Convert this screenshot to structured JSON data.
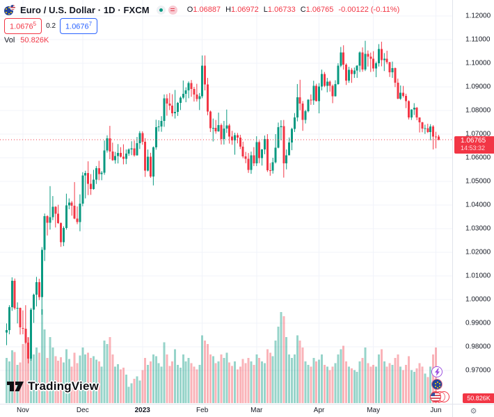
{
  "colors": {
    "up": "#089981",
    "down": "#F23645",
    "accent_blue": "#2962FF",
    "text": "#131722",
    "muted_text": "#787B86",
    "grid": "#F0F3FA",
    "axis_border": "#E0E3EB",
    "last_price_line": "#F23645",
    "volume_up": "rgba(8,153,129,0.42)",
    "volume_down": "rgba(242,54,69,0.38)"
  },
  "header": {
    "title": "Euro / U.S. Dollar · 1D · FXCM",
    "ohlc": {
      "o_label": "O",
      "o_value": "1.06887",
      "h_label": "H",
      "h_value": "1.06972",
      "l_label": "L",
      "l_value": "1.06733",
      "c_label": "C",
      "c_value": "1.06765",
      "change": "-0.00122 (-0.11%)"
    },
    "sell_price": {
      "main": "1.0676",
      "sup": "5"
    },
    "spread": "0.2",
    "buy_price": {
      "main": "1.0676",
      "sup": "7"
    },
    "volume_row": {
      "label": "Vol",
      "value": "50.826K"
    }
  },
  "price_scale": {
    "ticks": [
      {
        "value": 1.12,
        "label": "1.12000"
      },
      {
        "value": 1.11,
        "label": "1.11000"
      },
      {
        "value": 1.1,
        "label": "1.10000"
      },
      {
        "value": 1.09,
        "label": "1.09000"
      },
      {
        "value": 1.08,
        "label": "1.08000"
      },
      {
        "value": 1.07,
        "label": "1.07000"
      },
      {
        "value": 1.06,
        "label": "1.06000"
      },
      {
        "value": 1.05,
        "label": "1.05000"
      },
      {
        "value": 1.04,
        "label": "1.04000"
      },
      {
        "value": 1.03,
        "label": "1.03000"
      },
      {
        "value": 1.02,
        "label": "1.02000"
      },
      {
        "value": 1.01,
        "label": "1.01000"
      },
      {
        "value": 1.0,
        "label": "1.00000"
      },
      {
        "value": 0.99,
        "label": "0.99000"
      },
      {
        "value": 0.98,
        "label": "0.98000"
      },
      {
        "value": 0.97,
        "label": "0.97000"
      }
    ],
    "last": {
      "value": 1.06765,
      "label": "1.06765",
      "countdown": "14:53:32"
    },
    "volume_badge": "50.826K"
  },
  "time_scale": {
    "ticks": [
      {
        "label": "Nov",
        "index": 6
      },
      {
        "label": "Dec",
        "index": 28
      },
      {
        "label": "2023",
        "index": 50,
        "bold": true
      },
      {
        "label": "Feb",
        "index": 72
      },
      {
        "label": "Mar",
        "index": 92
      },
      {
        "label": "Apr",
        "index": 115
      },
      {
        "label": "May",
        "index": 135
      },
      {
        "label": "Jun",
        "index": 158
      }
    ]
  },
  "watermark": {
    "brand": "TradingView"
  },
  "corner": {
    "gear": "⚙"
  },
  "chart_data": {
    "type": "candlestick",
    "title": "Euro / U.S. Dollar",
    "interval": "1D",
    "exchange": "FXCM",
    "legend_position": "top-left",
    "grid": true,
    "y_axis": {
      "min": 0.97,
      "max": 1.12,
      "tick_step": 0.01
    },
    "x_axis": {
      "labels": [
        "Nov",
        "Dec",
        "2023",
        "Feb",
        "Mar",
        "Apr",
        "May",
        "Jun"
      ]
    },
    "last_close": 1.06765,
    "last_volume_k": 50.826,
    "series_format": [
      "open",
      "high",
      "low",
      "close",
      "volume_k"
    ],
    "candles": [
      [
        0.986,
        0.9899,
        0.9807,
        0.9871,
        520
      ],
      [
        0.9871,
        0.9976,
        0.9853,
        0.9967,
        480
      ],
      [
        0.9967,
        1.0094,
        0.9952,
        1.008,
        610
      ],
      [
        1.008,
        1.0089,
        0.9957,
        0.9963,
        590
      ],
      [
        0.9963,
        0.9988,
        0.9899,
        0.9965,
        440
      ],
      [
        0.9965,
        0.9966,
        0.9852,
        0.9882,
        470
      ],
      [
        0.988,
        0.9954,
        0.9853,
        0.9877,
        680
      ],
      [
        0.9876,
        0.9976,
        0.9813,
        0.9817,
        820
      ],
      [
        0.9817,
        0.984,
        0.973,
        0.975,
        760
      ],
      [
        0.975,
        0.9965,
        0.9741,
        0.9957,
        900
      ],
      [
        0.9957,
        1.0025,
        0.9901,
        1.002,
        560
      ],
      [
        1.002,
        1.0096,
        0.9971,
        1.0074,
        640
      ],
      [
        1.0074,
        1.0088,
        0.9998,
        1.0011,
        580
      ],
      [
        1.0011,
        1.0222,
        0.9936,
        1.021,
        1080
      ],
      [
        1.021,
        1.0364,
        1.0163,
        1.0353,
        850
      ],
      [
        1.0353,
        1.0357,
        1.0271,
        1.0325,
        520
      ],
      [
        1.0325,
        1.048,
        1.0296,
        1.0348,
        760
      ],
      [
        1.0348,
        1.0438,
        1.0336,
        1.0393,
        640
      ],
      [
        1.0393,
        1.0395,
        1.0305,
        1.0363,
        540
      ],
      [
        1.0363,
        1.0401,
        1.032,
        1.0324,
        490
      ],
      [
        1.0324,
        1.0327,
        1.0223,
        1.0243,
        530
      ],
      [
        1.0243,
        1.031,
        1.0226,
        1.0303,
        470
      ],
      [
        1.0303,
        1.0448,
        1.0296,
        1.0398,
        620
      ],
      [
        1.0398,
        1.0428,
        1.0382,
        1.041,
        510
      ],
      [
        1.041,
        1.0417,
        1.0355,
        1.0397,
        420
      ],
      [
        1.0397,
        1.0497,
        1.034,
        1.0343,
        580
      ],
      [
        1.0343,
        1.0394,
        1.0319,
        1.0328,
        460
      ],
      [
        1.0328,
        1.0445,
        1.0289,
        1.0406,
        550
      ],
      [
        1.0406,
        1.0539,
        1.0395,
        1.0525,
        640
      ],
      [
        1.0525,
        1.0545,
        1.0428,
        1.0535,
        560
      ],
      [
        1.0535,
        1.0585,
        1.0442,
        1.049,
        580
      ],
      [
        1.049,
        1.0531,
        1.0443,
        1.0468,
        520
      ],
      [
        1.0468,
        1.0549,
        1.0465,
        1.0507,
        540
      ],
      [
        1.0507,
        1.0565,
        1.0489,
        1.0556,
        500
      ],
      [
        1.0556,
        1.0587,
        1.0505,
        1.0531,
        480
      ],
      [
        1.0531,
        1.0544,
        1.0505,
        1.0537,
        420
      ],
      [
        1.0537,
        1.0673,
        1.0528,
        1.0631,
        720
      ],
      [
        1.0631,
        1.0695,
        1.0622,
        1.0683,
        680
      ],
      [
        1.0683,
        1.0735,
        1.0594,
        1.0627,
        760
      ],
      [
        1.0627,
        1.0664,
        1.0587,
        1.059,
        560
      ],
      [
        1.059,
        1.0625,
        1.0575,
        1.0607,
        420
      ],
      [
        1.0607,
        1.0658,
        1.0576,
        1.0621,
        450
      ],
      [
        1.0621,
        1.0645,
        1.0601,
        1.0604,
        390
      ],
      [
        1.0604,
        1.0657,
        1.0572,
        1.0595,
        410
      ],
      [
        1.0595,
        1.0635,
        1.0573,
        1.0618,
        330
      ],
      [
        1.0618,
        1.064,
        1.0608,
        1.0635,
        190
      ],
      [
        1.0635,
        1.067,
        1.0611,
        1.064,
        230
      ],
      [
        1.064,
        1.0673,
        1.0605,
        1.061,
        280
      ],
      [
        1.061,
        1.0688,
        1.0609,
        1.0662,
        310
      ],
      [
        1.0662,
        1.0713,
        1.0637,
        1.0705,
        260
      ],
      [
        1.0705,
        1.0712,
        1.0655,
        1.0668,
        380
      ],
      [
        1.0668,
        1.0683,
        1.0519,
        1.0545,
        520
      ],
      [
        1.0545,
        1.0635,
        1.0542,
        1.0605,
        440
      ],
      [
        1.0605,
        1.0621,
        1.0515,
        1.0521,
        480
      ],
      [
        1.0521,
        1.0648,
        1.0483,
        1.0644,
        560
      ],
      [
        1.0644,
        1.0761,
        1.0634,
        1.073,
        540
      ],
      [
        1.073,
        1.0759,
        1.0711,
        1.0732,
        460
      ],
      [
        1.0732,
        1.0776,
        1.071,
        1.0756,
        420
      ],
      [
        1.0756,
        1.0868,
        1.0731,
        1.0852,
        700
      ],
      [
        1.0852,
        1.0869,
        1.0778,
        1.083,
        560
      ],
      [
        1.083,
        1.0874,
        1.0802,
        1.0821,
        430
      ],
      [
        1.0821,
        1.0869,
        1.0775,
        1.0788,
        480
      ],
      [
        1.0788,
        1.0887,
        1.0766,
        1.0794,
        620
      ],
      [
        1.0794,
        1.0836,
        1.0777,
        1.0832,
        440
      ],
      [
        1.0832,
        1.086,
        1.0802,
        1.0855,
        410
      ],
      [
        1.0855,
        1.0927,
        1.0848,
        1.087,
        560
      ],
      [
        1.087,
        1.0898,
        1.0835,
        1.0886,
        480
      ],
      [
        1.0886,
        1.0923,
        1.0852,
        1.0916,
        520
      ],
      [
        1.0916,
        1.0929,
        1.0858,
        1.0891,
        460
      ],
      [
        1.0891,
        1.09,
        1.0838,
        1.0867,
        420
      ],
      [
        1.0867,
        1.0913,
        1.0838,
        1.0849,
        390
      ],
      [
        1.0849,
        1.0874,
        1.0802,
        1.0861,
        440
      ],
      [
        1.0861,
        1.1033,
        1.0852,
        1.0989,
        780
      ],
      [
        1.0989,
        1.1033,
        1.0885,
        1.091,
        720
      ],
      [
        1.091,
        1.0938,
        1.078,
        1.0795,
        680
      ],
      [
        1.0795,
        1.08,
        1.0709,
        1.0725,
        560
      ],
      [
        1.0725,
        1.0766,
        1.0669,
        1.0727,
        540
      ],
      [
        1.0727,
        1.076,
        1.0702,
        1.0712,
        460
      ],
      [
        1.0712,
        1.0791,
        1.071,
        1.0738,
        480
      ],
      [
        1.0738,
        1.0745,
        1.0656,
        1.0679,
        560
      ],
      [
        1.0679,
        1.0756,
        1.0656,
        1.0723,
        520
      ],
      [
        1.0723,
        1.0804,
        1.0705,
        1.0737,
        580
      ],
      [
        1.0737,
        1.0744,
        1.066,
        1.069,
        470
      ],
      [
        1.069,
        1.0714,
        1.0655,
        1.0673,
        430
      ],
      [
        1.0673,
        1.0706,
        1.0613,
        1.0695,
        480
      ],
      [
        1.0695,
        1.0705,
        1.0661,
        1.0686,
        390
      ],
      [
        1.0686,
        1.0697,
        1.0637,
        1.0647,
        420
      ],
      [
        1.0647,
        1.0668,
        1.0598,
        1.0606,
        510
      ],
      [
        1.0606,
        1.0625,
        1.0577,
        1.0595,
        460
      ],
      [
        1.0595,
        1.062,
        1.0536,
        1.0548,
        520
      ],
      [
        1.0548,
        1.0626,
        1.0532,
        1.061,
        480
      ],
      [
        1.061,
        1.0645,
        1.0565,
        1.0576,
        440
      ],
      [
        1.0576,
        1.0691,
        1.0565,
        1.0666,
        560
      ],
      [
        1.0666,
        1.0673,
        1.0577,
        1.0598,
        520
      ],
      [
        1.0598,
        1.0637,
        1.0567,
        1.0635,
        480
      ],
      [
        1.0635,
        1.0694,
        1.0615,
        1.068,
        460
      ],
      [
        1.068,
        1.07,
        1.054,
        1.0547,
        620
      ],
      [
        1.0547,
        1.0578,
        1.0524,
        1.0545,
        580
      ],
      [
        1.0545,
        1.06,
        1.0533,
        1.0581,
        540
      ],
      [
        1.0581,
        1.07,
        1.0576,
        1.0643,
        720
      ],
      [
        1.0643,
        1.0749,
        1.064,
        1.073,
        880
      ],
      [
        1.073,
        1.0759,
        1.0674,
        1.0734,
        1050
      ],
      [
        1.0734,
        1.076,
        1.0516,
        1.0577,
        1000
      ],
      [
        1.0577,
        1.0635,
        1.0551,
        1.0611,
        760
      ],
      [
        1.0611,
        1.0686,
        1.0611,
        1.0665,
        560
      ],
      [
        1.0665,
        1.0727,
        1.0632,
        1.0722,
        520
      ],
      [
        1.0722,
        1.0789,
        1.0709,
        1.077,
        560
      ],
      [
        1.077,
        1.0912,
        1.0754,
        1.0856,
        780
      ],
      [
        1.0856,
        1.093,
        1.0801,
        1.083,
        720
      ],
      [
        1.083,
        1.084,
        1.0714,
        1.076,
        640
      ],
      [
        1.076,
        1.0803,
        1.0745,
        1.0797,
        480
      ],
      [
        1.0797,
        1.0848,
        1.0792,
        1.0845,
        440
      ],
      [
        1.0845,
        1.0868,
        1.0824,
        1.0843,
        420
      ],
      [
        1.0843,
        1.0926,
        1.0824,
        1.0905,
        520
      ],
      [
        1.0905,
        1.0913,
        1.0838,
        1.0839,
        480
      ],
      [
        1.0839,
        1.0916,
        1.0788,
        1.0902,
        500
      ],
      [
        1.0902,
        1.0973,
        1.0885,
        1.0955,
        560
      ],
      [
        1.0955,
        1.0963,
        1.0899,
        1.0905,
        440
      ],
      [
        1.0905,
        1.0938,
        1.0877,
        1.0922,
        420
      ],
      [
        1.0922,
        1.0927,
        1.088,
        1.0904,
        380
      ],
      [
        1.0904,
        1.091,
        1.0831,
        1.0861,
        420
      ],
      [
        1.0861,
        1.0928,
        1.0859,
        1.0912,
        460
      ],
      [
        1.0912,
        1.1,
        1.0909,
        1.0989,
        560
      ],
      [
        1.0989,
        1.1069,
        1.0983,
        1.1046,
        620
      ],
      [
        1.1046,
        1.1076,
        1.0973,
        1.0994,
        660
      ],
      [
        1.0994,
        1.1,
        1.0908,
        1.0927,
        480
      ],
      [
        1.0927,
        1.0985,
        1.0917,
        1.0972,
        420
      ],
      [
        1.0972,
        1.098,
        1.0917,
        1.0955,
        400
      ],
      [
        1.0955,
        1.0982,
        1.0938,
        1.0969,
        380
      ],
      [
        1.0969,
        1.0992,
        1.0938,
        1.0989,
        360
      ],
      [
        1.0989,
        1.105,
        1.0963,
        1.1045,
        480
      ],
      [
        1.1045,
        1.1067,
        1.0964,
        1.0973,
        520
      ],
      [
        1.0973,
        1.1095,
        1.0967,
        1.104,
        640
      ],
      [
        1.104,
        1.1054,
        1.0986,
        1.1028,
        460
      ],
      [
        1.1028,
        1.1045,
        1.0963,
        1.1019,
        420
      ],
      [
        1.1019,
        1.1051,
        1.0965,
        1.0978,
        440
      ],
      [
        1.0978,
        1.1007,
        1.0941,
        1.1,
        420
      ],
      [
        1.1,
        1.1081,
        1.0986,
        1.106,
        560
      ],
      [
        1.106,
        1.1091,
        1.0987,
        1.1013,
        620
      ],
      [
        1.1013,
        1.1043,
        1.0967,
        1.1019,
        480
      ],
      [
        1.1019,
        1.1053,
        1.0996,
        1.1004,
        420
      ],
      [
        1.1004,
        1.1006,
        1.0942,
        1.0962,
        460
      ],
      [
        1.0962,
        1.1007,
        1.0938,
        1.098,
        440
      ],
      [
        1.098,
        1.0982,
        1.0899,
        1.0917,
        520
      ],
      [
        1.0917,
        1.0935,
        1.0848,
        1.085,
        560
      ],
      [
        1.085,
        1.0906,
        1.0845,
        1.0875,
        420
      ],
      [
        1.0875,
        1.0904,
        1.0855,
        1.0862,
        380
      ],
      [
        1.0862,
        1.0871,
        1.081,
        1.0839,
        440
      ],
      [
        1.0839,
        1.0843,
        1.0762,
        1.077,
        540
      ],
      [
        1.077,
        1.0805,
        1.076,
        1.0805,
        380
      ],
      [
        1.0805,
        1.0831,
        1.0781,
        1.0812,
        360
      ],
      [
        1.0812,
        1.0815,
        1.0759,
        1.077,
        400
      ],
      [
        1.077,
        1.0771,
        1.0707,
        1.075,
        460
      ],
      [
        1.075,
        1.0752,
        1.0708,
        1.0724,
        420
      ],
      [
        1.0724,
        1.074,
        1.0701,
        1.0725,
        340
      ],
      [
        1.0725,
        1.0744,
        1.0705,
        1.0709,
        300
      ],
      [
        1.0709,
        1.0742,
        1.0674,
        1.0733,
        420
      ],
      [
        1.0733,
        1.0738,
        1.0635,
        1.069,
        560
      ],
      [
        1.069,
        1.071,
        1.064,
        1.0689,
        640
      ],
      [
        1.0689,
        1.0697,
        1.0673,
        1.0676,
        50.8
      ]
    ]
  }
}
